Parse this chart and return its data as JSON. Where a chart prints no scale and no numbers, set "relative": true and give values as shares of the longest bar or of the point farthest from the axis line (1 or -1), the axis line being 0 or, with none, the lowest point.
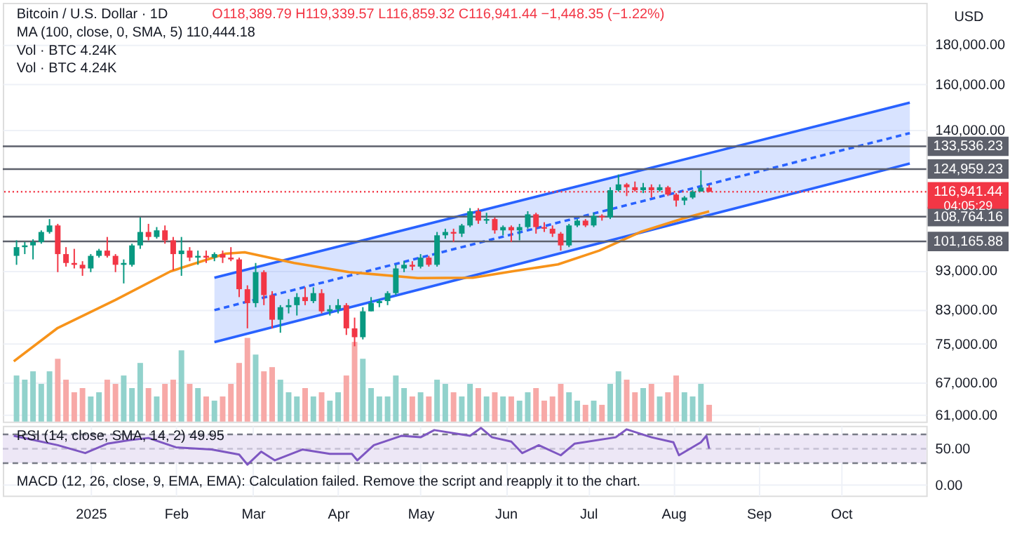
{
  "chart_data": [
    {
      "type": "candlestick",
      "title": "Bitcoin / U.S. Dollar · 1D",
      "ylabel": "USD",
      "log": true,
      "grid": true,
      "tick_labels": "y",
      "xlim": [
        "2024-11-30",
        "2025-11-01"
      ],
      "xticks": [
        {
          "value": "2025-01-01",
          "label": null
        },
        {
          "value": "2025-02-01",
          "label": null
        },
        {
          "value": "2025-03-01",
          "label": null
        },
        {
          "value": "2025-04-01",
          "label": null
        },
        {
          "value": "2025-05-01",
          "label": null
        },
        {
          "value": "2025-06-01",
          "label": null
        },
        {
          "value": "2025-07-01",
          "label": null
        },
        {
          "value": "2025-08-01",
          "label": null
        },
        {
          "value": "2025-09-01",
          "label": null
        },
        {
          "value": "2025-10-01",
          "label": null
        }
      ],
      "ylim": [
        59800,
        203000
      ],
      "yticks": [
        {
          "value": 61000,
          "label": "61,000.00"
        },
        {
          "value": 67000,
          "label": "67,000.00"
        },
        {
          "value": 75000,
          "label": "75,000.00"
        },
        {
          "value": 83000,
          "label": "83,000.00"
        },
        {
          "value": 93000,
          "label": "93,000.00"
        },
        {
          "value": 140000,
          "label": "140,000.00"
        },
        {
          "value": 160000,
          "label": "160,000.00"
        },
        {
          "value": 180000,
          "label": "180,000.00"
        }
      ],
      "x": [
        "2024-12-05",
        "2024-12-08",
        "2024-12-11",
        "2024-12-14",
        "2024-12-17",
        "2024-12-20",
        "2024-12-23",
        "2024-12-26",
        "2024-12-29",
        "2025-01-01",
        "2025-01-04",
        "2025-01-07",
        "2025-01-10",
        "2025-01-13",
        "2025-01-16",
        "2025-01-19",
        "2025-01-22",
        "2025-01-25",
        "2025-01-28",
        "2025-01-31",
        "2025-02-03",
        "2025-02-06",
        "2025-02-09",
        "2025-02-12",
        "2025-02-15",
        "2025-02-18",
        "2025-02-21",
        "2025-02-24",
        "2025-02-27",
        "2025-03-02",
        "2025-03-05",
        "2025-03-08",
        "2025-03-11",
        "2025-03-14",
        "2025-03-17",
        "2025-03-20",
        "2025-03-23",
        "2025-03-26",
        "2025-03-29",
        "2025-04-01",
        "2025-04-04",
        "2025-04-07",
        "2025-04-10",
        "2025-04-13",
        "2025-04-16",
        "2025-04-19",
        "2025-04-22",
        "2025-04-25",
        "2025-04-28",
        "2025-05-01",
        "2025-05-04",
        "2025-05-07",
        "2025-05-10",
        "2025-05-13",
        "2025-05-16",
        "2025-05-19",
        "2025-05-22",
        "2025-05-25",
        "2025-05-28",
        "2025-05-31",
        "2025-06-03",
        "2025-06-06",
        "2025-06-09",
        "2025-06-12",
        "2025-06-15",
        "2025-06-18",
        "2025-06-21",
        "2025-06-24",
        "2025-06-27",
        "2025-06-30",
        "2025-07-03",
        "2025-07-06",
        "2025-07-09",
        "2025-07-12",
        "2025-07-15",
        "2025-07-18",
        "2025-07-21",
        "2025-07-24",
        "2025-07-27",
        "2025-07-30",
        "2025-08-02",
        "2025-08-05",
        "2025-08-08",
        "2025-08-11",
        "2025-08-14"
      ],
      "ohlc": [
        [
          97000,
          101500,
          94500,
          99500
        ],
        [
          99500,
          101000,
          97500,
          100000
        ],
        [
          100000,
          101800,
          96000,
          101000
        ],
        [
          101000,
          104500,
          100500,
          104000
        ],
        [
          104000,
          108000,
          103500,
          106000
        ],
        [
          106000,
          106500,
          92500,
          97500
        ],
        [
          97500,
          99500,
          94000,
          95000
        ],
        [
          95000,
          99000,
          93500,
          94500
        ],
        [
          94500,
          95500,
          91500,
          93500
        ],
        [
          93500,
          97500,
          92500,
          97000
        ],
        [
          97000,
          99000,
          96500,
          98500
        ],
        [
          98500,
          102500,
          96500,
          97000
        ],
        [
          97000,
          97500,
          92500,
          94500
        ],
        [
          94500,
          96000,
          89500,
          95000
        ],
        [
          94500,
          100500,
          94000,
          100000
        ],
        [
          100000,
          108500,
          99000,
          104000
        ],
        [
          104000,
          106500,
          101500,
          102500
        ],
        [
          102500,
          105500,
          102000,
          104500
        ],
        [
          104500,
          106000,
          100500,
          101500
        ],
        [
          101500,
          102500,
          93000,
          97500
        ],
        [
          97500,
          102500,
          91500,
          98500
        ],
        [
          98500,
          99500,
          95500,
          96500
        ],
        [
          96500,
          98500,
          94500,
          97000
        ],
        [
          97000,
          98500,
          95000,
          96500
        ],
        [
          96500,
          98000,
          95500,
          97500
        ],
        [
          97500,
          98500,
          95000,
          96500
        ],
        [
          96500,
          99500,
          95500,
          96000
        ],
        [
          96000,
          96500,
          86000,
          88000
        ],
        [
          88000,
          89000,
          78500,
          84500
        ],
        [
          84500,
          95000,
          83500,
          92500
        ],
        [
          92500,
          93000,
          84000,
          86500
        ],
        [
          86500,
          87500,
          78500,
          80500
        ],
        [
          80500,
          84000,
          77500,
          83500
        ],
        [
          83500,
          85500,
          82000,
          84000
        ],
        [
          84000,
          87000,
          81500,
          86000
        ],
        [
          86000,
          88500,
          84000,
          85000
        ],
        [
          85000,
          88500,
          84500,
          87000
        ],
        [
          87000,
          88000,
          82000,
          82500
        ],
        [
          82500,
          84000,
          81500,
          83000
        ],
        [
          83000,
          85500,
          82000,
          84000
        ],
        [
          84000,
          84500,
          77000,
          78500
        ],
        [
          78500,
          81000,
          74500,
          76500
        ],
        [
          76500,
          83500,
          76000,
          82500
        ],
        [
          82500,
          86000,
          82500,
          84500
        ],
        [
          84500,
          85500,
          83500,
          85000
        ],
        [
          85000,
          87500,
          84000,
          87000
        ],
        [
          87000,
          94500,
          86500,
          93500
        ],
        [
          93500,
          95500,
          92500,
          94500
        ],
        [
          94500,
          95500,
          93000,
          94000
        ],
        [
          94000,
          97500,
          93500,
          96500
        ],
        [
          96500,
          97000,
          94000,
          94500
        ],
        [
          94500,
          104000,
          94000,
          103000
        ],
        [
          103000,
          105000,
          102000,
          104000
        ],
        [
          104000,
          105000,
          101000,
          103500
        ],
        [
          103500,
          106500,
          102500,
          106000
        ],
        [
          106000,
          111500,
          105500,
          110500
        ],
        [
          110500,
          111500,
          106500,
          107500
        ],
        [
          107500,
          110000,
          106500,
          108000
        ],
        [
          108000,
          108500,
          103500,
          104500
        ],
        [
          104500,
          106000,
          103000,
          105500
        ],
        [
          105500,
          106000,
          101000,
          104500
        ],
        [
          104500,
          106500,
          101500,
          105500
        ],
        [
          105500,
          110500,
          105000,
          109500
        ],
        [
          109500,
          110000,
          103500,
          105500
        ],
        [
          105500,
          107000,
          104000,
          105000
        ],
        [
          105000,
          106000,
          102500,
          103500
        ],
        [
          103500,
          104000,
          98500,
          100000
        ],
        [
          100000,
          106500,
          99500,
          106000
        ],
        [
          106000,
          108000,
          105500,
          107500
        ],
        [
          107500,
          108000,
          105500,
          106000
        ],
        [
          106000,
          110000,
          105500,
          109000
        ],
        [
          109000,
          109500,
          107500,
          108500
        ],
        [
          108500,
          118500,
          108000,
          117500
        ],
        [
          117500,
          123000,
          117000,
          119500
        ],
        [
          119500,
          120000,
          115500,
          118500
        ],
        [
          118500,
          120500,
          117000,
          117500
        ],
        [
          117500,
          120000,
          116500,
          118500
        ],
        [
          118500,
          119500,
          115000,
          117500
        ],
        [
          117500,
          119500,
          117000,
          118500
        ],
        [
          118500,
          119000,
          115500,
          116000
        ],
        [
          116000,
          116500,
          112000,
          114000
        ],
        [
          114000,
          115500,
          112500,
          115000
        ],
        [
          115000,
          117500,
          114500,
          117000
        ],
        [
          117000,
          124500,
          117000,
          118400
        ],
        [
          118389.79,
          119339.57,
          116859.32,
          116941.44
        ]
      ],
      "colors": [
        "#089981",
        "#089981",
        "#089981",
        "#089981",
        "#089981",
        "#f23645",
        "#f23645",
        "#f23645",
        "#f23645",
        "#089981",
        "#089981",
        "#f23645",
        "#f23645",
        "#089981",
        "#089981",
        "#089981",
        "#f23645",
        "#089981",
        "#f23645",
        "#f23645",
        "#089981",
        "#f23645",
        "#089981",
        "#f23645",
        "#089981",
        "#f23645",
        "#f23645",
        "#f23645",
        "#f23645",
        "#089981",
        "#f23645",
        "#f23645",
        "#089981",
        "#089981",
        "#089981",
        "#f23645",
        "#089981",
        "#f23645",
        "#089981",
        "#089981",
        "#f23645",
        "#f23645",
        "#089981",
        "#089981",
        "#089981",
        "#089981",
        "#089981",
        "#089981",
        "#f23645",
        "#089981",
        "#f23645",
        "#089981",
        "#089981",
        "#f23645",
        "#089981",
        "#089981",
        "#f23645",
        "#089981",
        "#f23645",
        "#089981",
        "#f23645",
        "#089981",
        "#089981",
        "#f23645",
        "#f23645",
        "#f23645",
        "#f23645",
        "#089981",
        "#089981",
        "#f23645",
        "#089981",
        "#f23645",
        "#089981",
        "#089981",
        "#f23645",
        "#f23645",
        "#089981",
        "#f23645",
        "#089981",
        "#f23645",
        "#f23645",
        "#089981",
        "#089981",
        "#089981",
        "#f23645"
      ],
      "series": [
        {
          "type": "line",
          "color": "#2962ff",
          "x": [
            "2025-02-15",
            "2025-10-26"
          ],
          "values": [
            91000,
            151700
          ]
        },
        {
          "type": "line",
          "color": "#2962ff",
          "line_style": "dashed",
          "x": [
            "2025-02-15",
            "2025-10-26"
          ],
          "values": [
            82800,
            138800
          ],
          "lower": [
            75400,
            127000
          ],
          "upper": [
            91000,
            151700
          ]
        },
        {
          "type": "line",
          "color": "#2962ff",
          "x": [
            "2025-02-15",
            "2025-10-26"
          ],
          "values": [
            75400,
            127000
          ]
        },
        {
          "type": "line",
          "color": "#f7931a",
          "x": [
            "2024-12-04",
            "2024-12-20",
            "2025-01-10",
            "2025-01-30",
            "2025-02-19",
            "2025-02-26",
            "2025-03-16",
            "2025-04-05",
            "2025-04-30",
            "2025-05-20",
            "2025-06-04",
            "2025-06-20",
            "2025-07-05",
            "2025-07-20",
            "2025-08-05",
            "2025-08-14"
          ],
          "values": [
            71300,
            78600,
            85300,
            92700,
            97600,
            98000,
            95000,
            92500,
            90900,
            91000,
            92800,
            94600,
            98500,
            104000,
            108300,
            110444.18
          ]
        }
      ],
      "ref_lines": [
        {
          "axis": "y",
          "value": 133536.23,
          "label": "133,536.23",
          "color": "#5d606b"
        },
        {
          "axis": "y",
          "value": 124959.23,
          "label": "124,959.23",
          "color": "#5d606b"
        },
        {
          "axis": "y",
          "value": 116941.44,
          "label": "116,941.44",
          "color": "#f23645",
          "line_style": "dotted"
        },
        {
          "axis": "y",
          "value": 108764.16,
          "label": "108,764.16",
          "color": "#5d606b"
        },
        {
          "axis": "y",
          "value": 101165.88,
          "label": "101,165.88",
          "color": "#5d606b"
        }
      ],
      "annotations": [
        "O118,389.79  H119,339.57  L116,859.32  C116,941.44  −1,448.35 (−1.22%)",
        "MA (100, close, 0, SMA, 5)  110,444.18",
        "Vol · BTC  4.24K",
        "Vol · BTC  4.24K",
        "04:05:29"
      ]
    },
    {
      "type": "bar",
      "relative": true,
      "tick_labels": false,
      "xlim": [
        "2024-11-30",
        "2025-11-01"
      ],
      "xticks": [
        {
          "value": "2025-01-01",
          "label": null
        },
        {
          "value": "2025-02-01",
          "label": null
        },
        {
          "value": "2025-03-01",
          "label": null
        },
        {
          "value": "2025-04-01",
          "label": null
        },
        {
          "value": "2025-05-01",
          "label": null
        },
        {
          "value": "2025-06-01",
          "label": null
        },
        {
          "value": "2025-07-01",
          "label": null
        },
        {
          "value": "2025-08-01",
          "label": null
        },
        {
          "value": "2025-09-01",
          "label": null
        },
        {
          "value": "2025-10-01",
          "label": null
        }
      ],
      "x": [
        "2024-12-05",
        "2024-12-08",
        "2024-12-11",
        "2024-12-14",
        "2024-12-17",
        "2024-12-20",
        "2024-12-23",
        "2024-12-26",
        "2024-12-29",
        "2025-01-01",
        "2025-01-04",
        "2025-01-07",
        "2025-01-10",
        "2025-01-13",
        "2025-01-16",
        "2025-01-19",
        "2025-01-22",
        "2025-01-25",
        "2025-01-28",
        "2025-01-31",
        "2025-02-03",
        "2025-02-06",
        "2025-02-09",
        "2025-02-12",
        "2025-02-15",
        "2025-02-18",
        "2025-02-21",
        "2025-02-24",
        "2025-02-27",
        "2025-03-02",
        "2025-03-05",
        "2025-03-08",
        "2025-03-11",
        "2025-03-14",
        "2025-03-17",
        "2025-03-20",
        "2025-03-23",
        "2025-03-26",
        "2025-03-29",
        "2025-04-01",
        "2025-04-04",
        "2025-04-07",
        "2025-04-10",
        "2025-04-13",
        "2025-04-16",
        "2025-04-19",
        "2025-04-22",
        "2025-04-25",
        "2025-04-28",
        "2025-05-01",
        "2025-05-04",
        "2025-05-07",
        "2025-05-10",
        "2025-05-13",
        "2025-05-16",
        "2025-05-19",
        "2025-05-22",
        "2025-05-25",
        "2025-05-28",
        "2025-05-31",
        "2025-06-03",
        "2025-06-06",
        "2025-06-09",
        "2025-06-12",
        "2025-06-15",
        "2025-06-18",
        "2025-06-21",
        "2025-06-24",
        "2025-06-27",
        "2025-06-30",
        "2025-07-03",
        "2025-07-06",
        "2025-07-09",
        "2025-07-12",
        "2025-07-15",
        "2025-07-18",
        "2025-07-21",
        "2025-07-24",
        "2025-07-27",
        "2025-07-30",
        "2025-08-02",
        "2025-08-05",
        "2025-08-08",
        "2025-08-11",
        "2025-08-14"
      ],
      "values": [
        0.55,
        0.5,
        0.6,
        0.45,
        0.6,
        0.75,
        0.5,
        0.35,
        0.4,
        0.3,
        0.35,
        0.5,
        0.45,
        0.55,
        0.4,
        0.7,
        0.4,
        0.3,
        0.45,
        0.5,
        0.85,
        0.45,
        0.4,
        0.3,
        0.25,
        0.3,
        0.45,
        0.7,
        1.0,
        0.8,
        0.6,
        0.65,
        0.5,
        0.35,
        0.3,
        0.4,
        0.3,
        0.35,
        0.25,
        0.35,
        0.55,
        0.95,
        0.75,
        0.4,
        0.3,
        0.3,
        0.55,
        0.4,
        0.3,
        0.35,
        0.3,
        0.5,
        0.45,
        0.35,
        0.3,
        0.45,
        0.4,
        0.3,
        0.35,
        0.3,
        0.3,
        0.25,
        0.35,
        0.4,
        0.25,
        0.3,
        0.45,
        0.35,
        0.25,
        0.2,
        0.25,
        0.2,
        0.45,
        0.6,
        0.5,
        0.35,
        0.4,
        0.45,
        0.3,
        0.35,
        0.55,
        0.35,
        0.3,
        0.45,
        0.2
      ],
      "colors": [
        "#92d2cc",
        "#92d2cc",
        "#92d2cc",
        "#92d2cc",
        "#92d2cc",
        "#f7a9a7",
        "#f7a9a7",
        "#f7a9a7",
        "#f7a9a7",
        "#92d2cc",
        "#92d2cc",
        "#f7a9a7",
        "#f7a9a7",
        "#92d2cc",
        "#92d2cc",
        "#92d2cc",
        "#f7a9a7",
        "#92d2cc",
        "#f7a9a7",
        "#f7a9a7",
        "#92d2cc",
        "#f7a9a7",
        "#92d2cc",
        "#f7a9a7",
        "#92d2cc",
        "#f7a9a7",
        "#f7a9a7",
        "#f7a9a7",
        "#f7a9a7",
        "#92d2cc",
        "#f7a9a7",
        "#f7a9a7",
        "#92d2cc",
        "#92d2cc",
        "#92d2cc",
        "#f7a9a7",
        "#92d2cc",
        "#f7a9a7",
        "#92d2cc",
        "#92d2cc",
        "#f7a9a7",
        "#f7a9a7",
        "#92d2cc",
        "#92d2cc",
        "#92d2cc",
        "#92d2cc",
        "#92d2cc",
        "#92d2cc",
        "#f7a9a7",
        "#92d2cc",
        "#f7a9a7",
        "#92d2cc",
        "#92d2cc",
        "#f7a9a7",
        "#92d2cc",
        "#92d2cc",
        "#f7a9a7",
        "#92d2cc",
        "#f7a9a7",
        "#92d2cc",
        "#f7a9a7",
        "#92d2cc",
        "#92d2cc",
        "#f7a9a7",
        "#f7a9a7",
        "#f7a9a7",
        "#f7a9a7",
        "#92d2cc",
        "#92d2cc",
        "#f7a9a7",
        "#92d2cc",
        "#f7a9a7",
        "#92d2cc",
        "#92d2cc",
        "#f7a9a7",
        "#f7a9a7",
        "#92d2cc",
        "#f7a9a7",
        "#92d2cc",
        "#f7a9a7",
        "#f7a9a7",
        "#92d2cc",
        "#92d2cc",
        "#92d2cc",
        "#f7a9a7"
      ]
    },
    {
      "type": "line",
      "color": "#7e57c2",
      "grid": true,
      "xlim": [
        "2024-11-30",
        "2025-11-01"
      ],
      "xticks": [
        {
          "value": "2025-01-01",
          "label": "2025"
        },
        {
          "value": "2025-02-01",
          "label": "Feb"
        },
        {
          "value": "2025-03-01",
          "label": "Mar"
        },
        {
          "value": "2025-04-01",
          "label": "Apr"
        },
        {
          "value": "2025-05-01",
          "label": "May"
        },
        {
          "value": "2025-06-01",
          "label": "Jun"
        },
        {
          "value": "2025-07-01",
          "label": "Jul"
        },
        {
          "value": "2025-08-01",
          "label": "Aug"
        },
        {
          "value": "2025-09-01",
          "label": "Sep"
        },
        {
          "value": "2025-10-01",
          "label": "Oct"
        }
      ],
      "ylim": [
        -15,
        82
      ],
      "yticks": [
        {
          "value": 50,
          "label": "50.00"
        },
        {
          "value": 0,
          "label": "0.00"
        }
      ],
      "x": [
        "2024-12-04",
        "2024-12-20",
        "2024-12-30",
        "2025-01-07",
        "2025-01-15",
        "2025-01-22",
        "2025-02-01",
        "2025-02-14",
        "2025-02-24",
        "2025-02-27",
        "2025-03-04",
        "2025-03-09",
        "2025-03-19",
        "2025-03-29",
        "2025-04-06",
        "2025-04-08",
        "2025-04-14",
        "2025-04-24",
        "2025-05-01",
        "2025-05-06",
        "2025-05-19",
        "2025-05-23",
        "2025-05-27",
        "2025-06-03",
        "2025-06-07",
        "2025-06-13",
        "2025-06-21",
        "2025-06-26",
        "2025-07-11",
        "2025-07-15",
        "2025-07-24",
        "2025-08-01",
        "2025-08-03",
        "2025-08-11",
        "2025-08-13",
        "2025-08-14"
      ],
      "values": [
        68,
        55,
        44,
        57,
        62,
        65,
        52,
        49,
        42,
        28,
        46,
        34,
        49,
        43,
        43,
        34,
        55,
        68,
        66,
        76,
        68,
        79,
        66,
        60,
        44,
        55,
        41,
        57,
        66,
        77,
        66,
        59,
        41,
        59,
        68,
        49.95
      ],
      "bands": [
        {
          "axis": "y",
          "from": 30,
          "to": 70,
          "color": "#ede7f6"
        }
      ],
      "ref_lines": [
        {
          "axis": "y",
          "value": 70,
          "color": "#787b86",
          "line_style": "dashed"
        },
        {
          "axis": "y",
          "value": 50,
          "color": "#c5c0d3",
          "line_style": "dashed"
        },
        {
          "axis": "y",
          "value": 30,
          "color": "#787b86",
          "line_style": "dashed"
        }
      ],
      "annotations": [
        "RSI (14, close, SMA, 14, 2)  49.95",
        "MACD (12, 26, close, 9, EMA, EMA): Calculation failed. Remove the script and reapply it to the chart."
      ]
    }
  ]
}
